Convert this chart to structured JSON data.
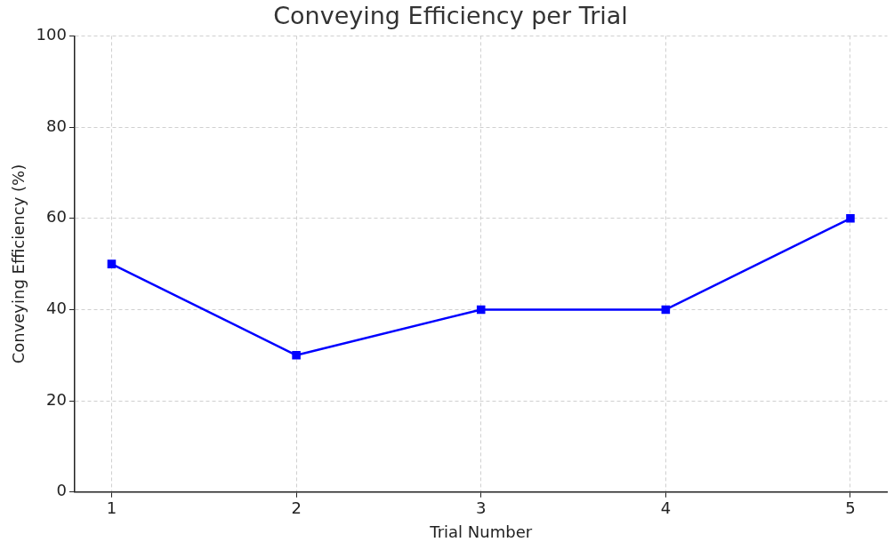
{
  "chart_data": {
    "type": "line",
    "title": "Conveying Efficiency per Trial",
    "xlabel": "Trial Number",
    "ylabel": "Conveying Efficiency (%)",
    "x": [
      1,
      2,
      3,
      4,
      5
    ],
    "series": [
      {
        "color": "#0000ff",
        "values": [
          50,
          30,
          40,
          40,
          60
        ]
      }
    ],
    "xlim": [
      0.8,
      5.2
    ],
    "xticks": [
      1,
      2,
      3,
      4,
      5
    ],
    "ylim": [
      0,
      100
    ],
    "yticks": [
      0,
      20,
      40,
      60,
      80,
      100
    ],
    "grid": true,
    "marker": "square",
    "line_style": "solid",
    "legend": false
  }
}
